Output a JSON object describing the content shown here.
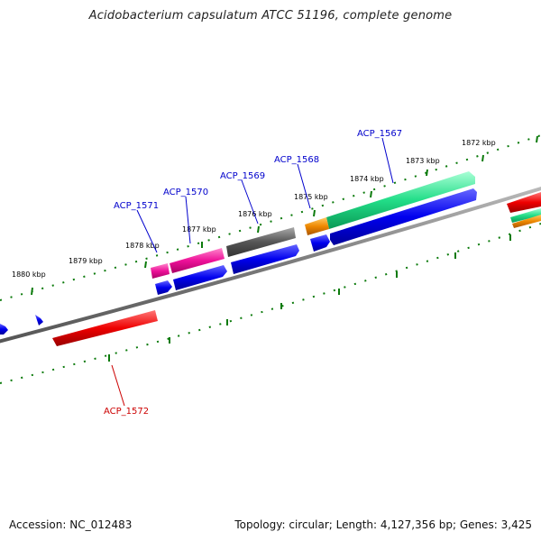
{
  "title": "Acidobacterium capsulatum ATCC 51196, complete genome",
  "footer": {
    "accession": "Accession: NC_012483",
    "topology": "Topology: circular; Length: 4,127,356 bp; Genes: 3,425"
  },
  "ruler_labels": [
    "1880 kbp",
    "1879 kbp",
    "1878 kbp",
    "1877 kbp",
    "1876 kbp",
    "1875 kbp",
    "1874 kbp",
    "1873 kbp",
    "1872 kbp"
  ],
  "gene_labels": [
    {
      "text": "ACP_1567",
      "color": "#0000cc"
    },
    {
      "text": "ACP_1568",
      "color": "#0000cc"
    },
    {
      "text": "ACP_1569",
      "color": "#0000cc"
    },
    {
      "text": "ACP_1570",
      "color": "#0000cc"
    },
    {
      "text": "ACP_1571",
      "color": "#0000cc"
    },
    {
      "text": "ACP_1572",
      "color": "#cc0000"
    }
  ],
  "colors": {
    "backbone": "#7a7a7a",
    "tick": "#0b7a0b",
    "green_feature": "#22dd88",
    "pink_feature": "#ee1199",
    "grey_feature": "#555555",
    "orange_feature": "#ee8800",
    "blue_feature": "#0000ee",
    "red_feature": "#ee0000"
  }
}
